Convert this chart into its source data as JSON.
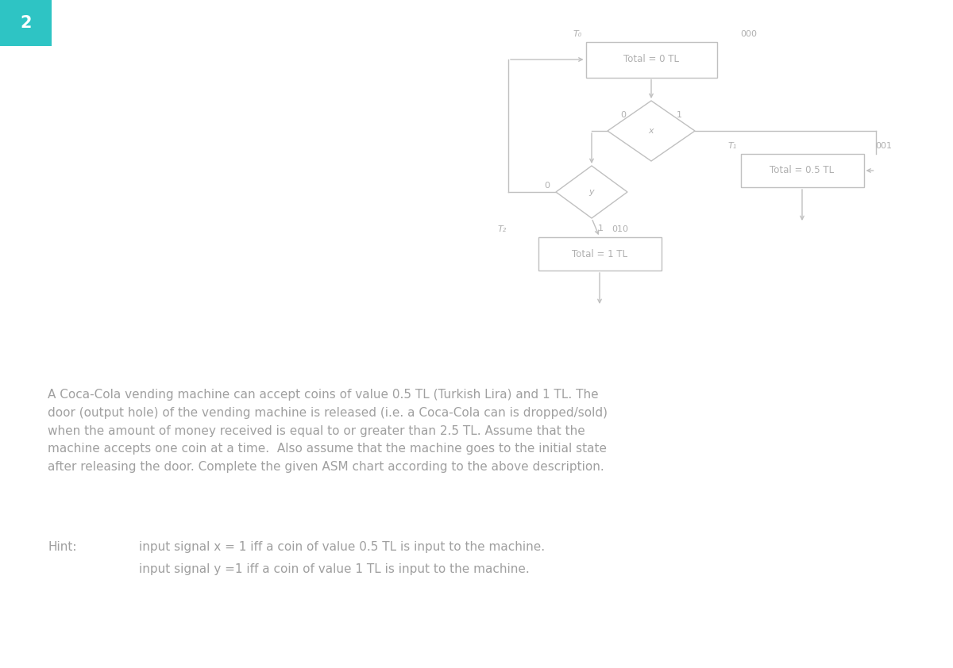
{
  "bg_color": "#ffffff",
  "diagram_color": "#c0c0c0",
  "text_color": "#b0b0b0",
  "question_number": "2",
  "question_bg": "#2ec4c4",
  "paragraph_text": "A Coca-Cola vending machine can accept coins of value 0.5 TL (Turkish Lira) and 1 TL. The\ndoor (output hole) of the vending machine is released (i.e. a Coca-Cola can is dropped/sold)\nwhen the amount of money received is equal to or greater than 2.5 TL. Assume that the\nmachine accepts one coin at a time.  Also assume that the machine goes to the initial state\nafter releasing the door. Complete the given ASM chart according to the above description.",
  "hint_label": "Hint:",
  "hint_line1": "input signal x = 1 iff a coin of value 0.5 TL is input to the machine.",
  "hint_line2": "input signal y =1 iff a coin of value 1 TL is input to the machine.",
  "state_T0_label": "T₀",
  "state_T0_code": "000",
  "state_T0_text": "Total = 0 TL",
  "state_T1_label": "T₁",
  "state_T1_code": "001",
  "state_T1_text": "Total = 0.5 TL",
  "state_T2_label": "T₂",
  "state_T2_code": "010",
  "state_T2_text": "Total = 1 TL",
  "diamond_x_label": "x",
  "diamond_y_label": "y",
  "label_0": "0",
  "label_1": "1",
  "figw": 12.0,
  "figh": 8.42
}
